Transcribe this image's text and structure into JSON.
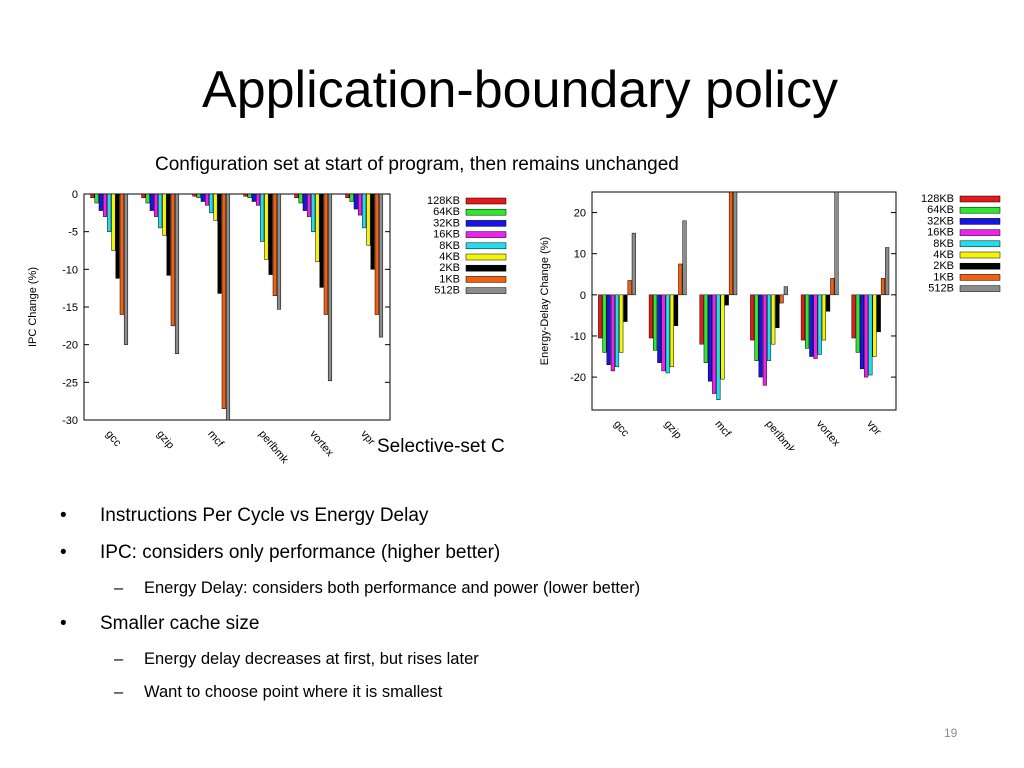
{
  "slide": {
    "title": "Application-boundary policy",
    "subtitle": "Configuration set at start of program, then remains unchanged",
    "hidden_caption": "Selective-set C",
    "page_number": "19",
    "bullets": [
      {
        "level": 1,
        "marker": "•",
        "text": "Instructions Per Cycle vs Energy Delay"
      },
      {
        "level": 1,
        "marker": "•",
        "text": "IPC: considers only performance (higher better)"
      },
      {
        "level": 2,
        "marker": "–",
        "text": "Energy Delay: considers both performance and power (lower better)"
      },
      {
        "level": 1,
        "marker": "•",
        "text": "Smaller cache size"
      },
      {
        "level": 2,
        "marker": "–",
        "text": "Energy delay decreases at first, but rises later"
      },
      {
        "level": 2,
        "marker": "–",
        "text": "Want to choose point where it is smallest"
      }
    ]
  },
  "legend_entries": [
    "128KB",
    "64KB",
    "32KB",
    "16KB",
    "8KB",
    "4KB",
    "2KB",
    "1KB",
    "512B"
  ],
  "colors": {
    "128KB": "#e31a1c",
    "64KB": "#2ee82e",
    "32KB": "#1515e8",
    "16KB": "#ee22ee",
    "8KB": "#22ddee",
    "4KB": "#f5f50a",
    "2KB": "#000000",
    "1KB": "#f06010",
    "512B": "#8c8c8c"
  },
  "chart_data": [
    {
      "type": "bar",
      "id": "ipc",
      "ylabel": "IPC Change (%)",
      "xlabel": "",
      "ylim": [
        -30,
        0
      ],
      "yticks": [
        "0",
        "-5",
        "-10",
        "-15",
        "-20",
        "-25",
        "-30"
      ],
      "categories": [
        "gcc",
        "gzip",
        "mcf",
        "perlbmk",
        "vortex",
        "vpr"
      ],
      "legend_position": "right-outside",
      "grid": false,
      "series": [
        {
          "name": "128KB",
          "values": [
            -0.5,
            -0.5,
            -0.3,
            -0.3,
            -0.5,
            -0.5
          ]
        },
        {
          "name": "64KB",
          "values": [
            -1.2,
            -1.2,
            -0.5,
            -0.5,
            -1.2,
            -1.0
          ]
        },
        {
          "name": "32KB",
          "values": [
            -2.2,
            -2.2,
            -1.0,
            -1.0,
            -2.2,
            -2.0
          ]
        },
        {
          "name": "16KB",
          "values": [
            -3.0,
            -3.0,
            -1.5,
            -1.5,
            -3.0,
            -2.8
          ]
        },
        {
          "name": "8KB",
          "values": [
            -5.0,
            -4.5,
            -2.5,
            -6.3,
            -5.0,
            -4.5
          ]
        },
        {
          "name": "4KB",
          "values": [
            -7.5,
            -5.5,
            -3.5,
            -8.7,
            -9.0,
            -6.8
          ]
        },
        {
          "name": "2KB",
          "values": [
            -11.2,
            -10.8,
            -13.2,
            -10.7,
            -12.4,
            -10.0
          ]
        },
        {
          "name": "1KB",
          "values": [
            -16.0,
            -17.5,
            -28.5,
            -13.5,
            -16.0,
            -16.0
          ]
        },
        {
          "name": "512B",
          "values": [
            -20.0,
            -21.2,
            -30.0,
            -15.3,
            -24.8,
            -19.0
          ]
        }
      ]
    },
    {
      "type": "bar",
      "id": "energy_delay",
      "ylabel": "Energy-Delay Change (%)",
      "xlabel": "",
      "ylim": [
        -28,
        25
      ],
      "yticks": [
        "20",
        "10",
        "0",
        "-10",
        "-20"
      ],
      "categories": [
        "gcc",
        "gzip",
        "mcf",
        "perlbmk",
        "vortex",
        "vpr"
      ],
      "legend_position": "right-outside",
      "grid": false,
      "series": [
        {
          "name": "128KB",
          "values": [
            -10.5,
            -10.5,
            -12.0,
            -11.0,
            -11.0,
            -10.5
          ]
        },
        {
          "name": "64KB",
          "values": [
            -14.0,
            -13.5,
            -16.5,
            -16.0,
            -13.0,
            -14.0
          ]
        },
        {
          "name": "32KB",
          "values": [
            -17.0,
            -16.5,
            -21.0,
            -20.0,
            -15.0,
            -18.0
          ]
        },
        {
          "name": "16KB",
          "values": [
            -18.5,
            -18.5,
            -24.0,
            -22.0,
            -15.5,
            -20.0
          ]
        },
        {
          "name": "8KB",
          "values": [
            -17.5,
            -19.0,
            -25.5,
            -16.0,
            -14.5,
            -19.5
          ]
        },
        {
          "name": "4KB",
          "values": [
            -14.0,
            -17.5,
            -20.5,
            -12.0,
            -11.0,
            -15.0
          ]
        },
        {
          "name": "2KB",
          "values": [
            -6.5,
            -7.5,
            -2.5,
            -8.0,
            -4.0,
            -9.0
          ]
        },
        {
          "name": "1KB",
          "values": [
            3.5,
            7.5,
            25.0,
            -2.0,
            4.0,
            4.0
          ]
        },
        {
          "name": "512B",
          "values": [
            15.0,
            18.0,
            25.0,
            2.0,
            25.0,
            11.5
          ]
        }
      ]
    }
  ]
}
